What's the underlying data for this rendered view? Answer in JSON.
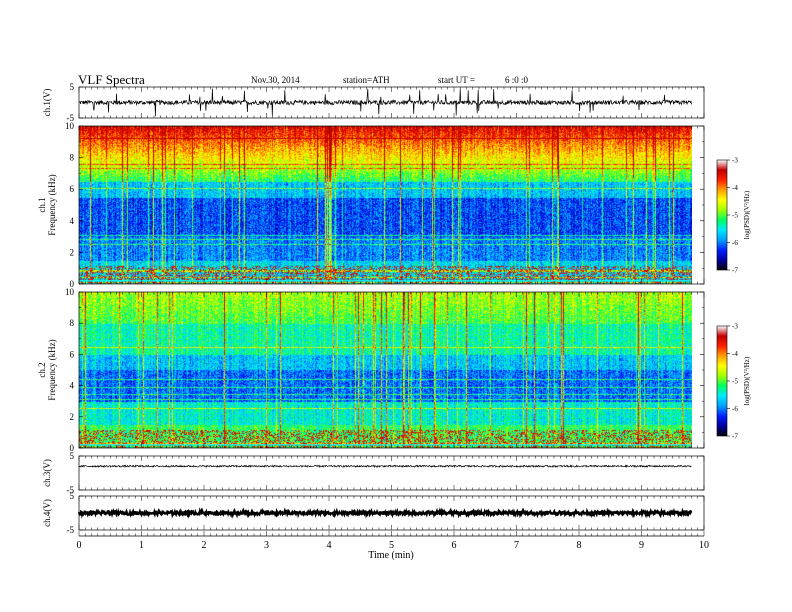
{
  "header": {
    "title": "VLF  Spectra",
    "date": "Nov.30, 2014",
    "station": "station=ATH",
    "start_label": "start  UT  =",
    "start_value": "6  :0  :0"
  },
  "colors": {
    "spectrogram_scale": [
      "#000000",
      "#0000a0",
      "#0020ff",
      "#00a0ff",
      "#00e8ff",
      "#00ff60",
      "#a0ff00",
      "#ffff00",
      "#ffa000",
      "#ff2000",
      "#c00000",
      "#ffffff"
    ],
    "trace": "#000000",
    "highlight_line": "#00ffff"
  },
  "chart_data": [
    {
      "type": "line",
      "name": "ch1-waveform",
      "ylabel": "ch.1(V)",
      "ylim": [
        -5,
        5
      ],
      "yticks": [
        "5",
        "-5"
      ],
      "x_range_min": [
        0,
        9.8
      ],
      "baseline": 0,
      "spike_amplitude": 4.5
    },
    {
      "type": "heatmap",
      "name": "ch1-spectrogram",
      "ylabel": "ch.1\nFrequency  (kHz)",
      "ylim": [
        0,
        10
      ],
      "yticks": [
        "0",
        "2",
        "4",
        "6",
        "8",
        "10"
      ],
      "x_range_min": [
        0,
        9.8
      ],
      "colorbar": {
        "label": "log(PSD)(V²/Hz)",
        "ticks": [
          "-3",
          "-4",
          "-5",
          "-6",
          "-7"
        ],
        "range": [
          -7,
          -3
        ]
      }
    },
    {
      "type": "heatmap",
      "name": "ch2-spectrogram",
      "ylabel": "ch.2\nFrequency  (kHz)",
      "ylim": [
        0,
        10
      ],
      "yticks": [
        "0",
        "2",
        "4",
        "6",
        "8",
        "10"
      ],
      "x_range_min": [
        0,
        9.8
      ],
      "colorbar": {
        "label": "log(PSD)(V²/Hz)",
        "ticks": [
          "-3",
          "-4",
          "-5",
          "-6",
          "-7"
        ],
        "range": [
          -7,
          -3
        ]
      }
    },
    {
      "type": "line",
      "name": "ch3-waveform",
      "ylabel": "ch.3(V)",
      "ylim": [
        -5,
        5
      ],
      "yticks": [
        "5",
        "-5"
      ],
      "x_range_min": [
        0,
        9.8
      ],
      "baseline": 2
    },
    {
      "type": "line",
      "name": "ch4-waveform",
      "ylabel": "ch.4(V)",
      "ylim": [
        -5,
        5
      ],
      "yticks": [
        "5",
        "-5"
      ],
      "x_range_min": [
        0,
        9.8
      ],
      "baseline": 0
    }
  ],
  "xaxis": {
    "label": "Time  (min)",
    "xlim": [
      0,
      10
    ],
    "ticks": [
      "0",
      "1",
      "2",
      "3",
      "4",
      "5",
      "6",
      "7",
      "8",
      "9",
      "10"
    ]
  }
}
